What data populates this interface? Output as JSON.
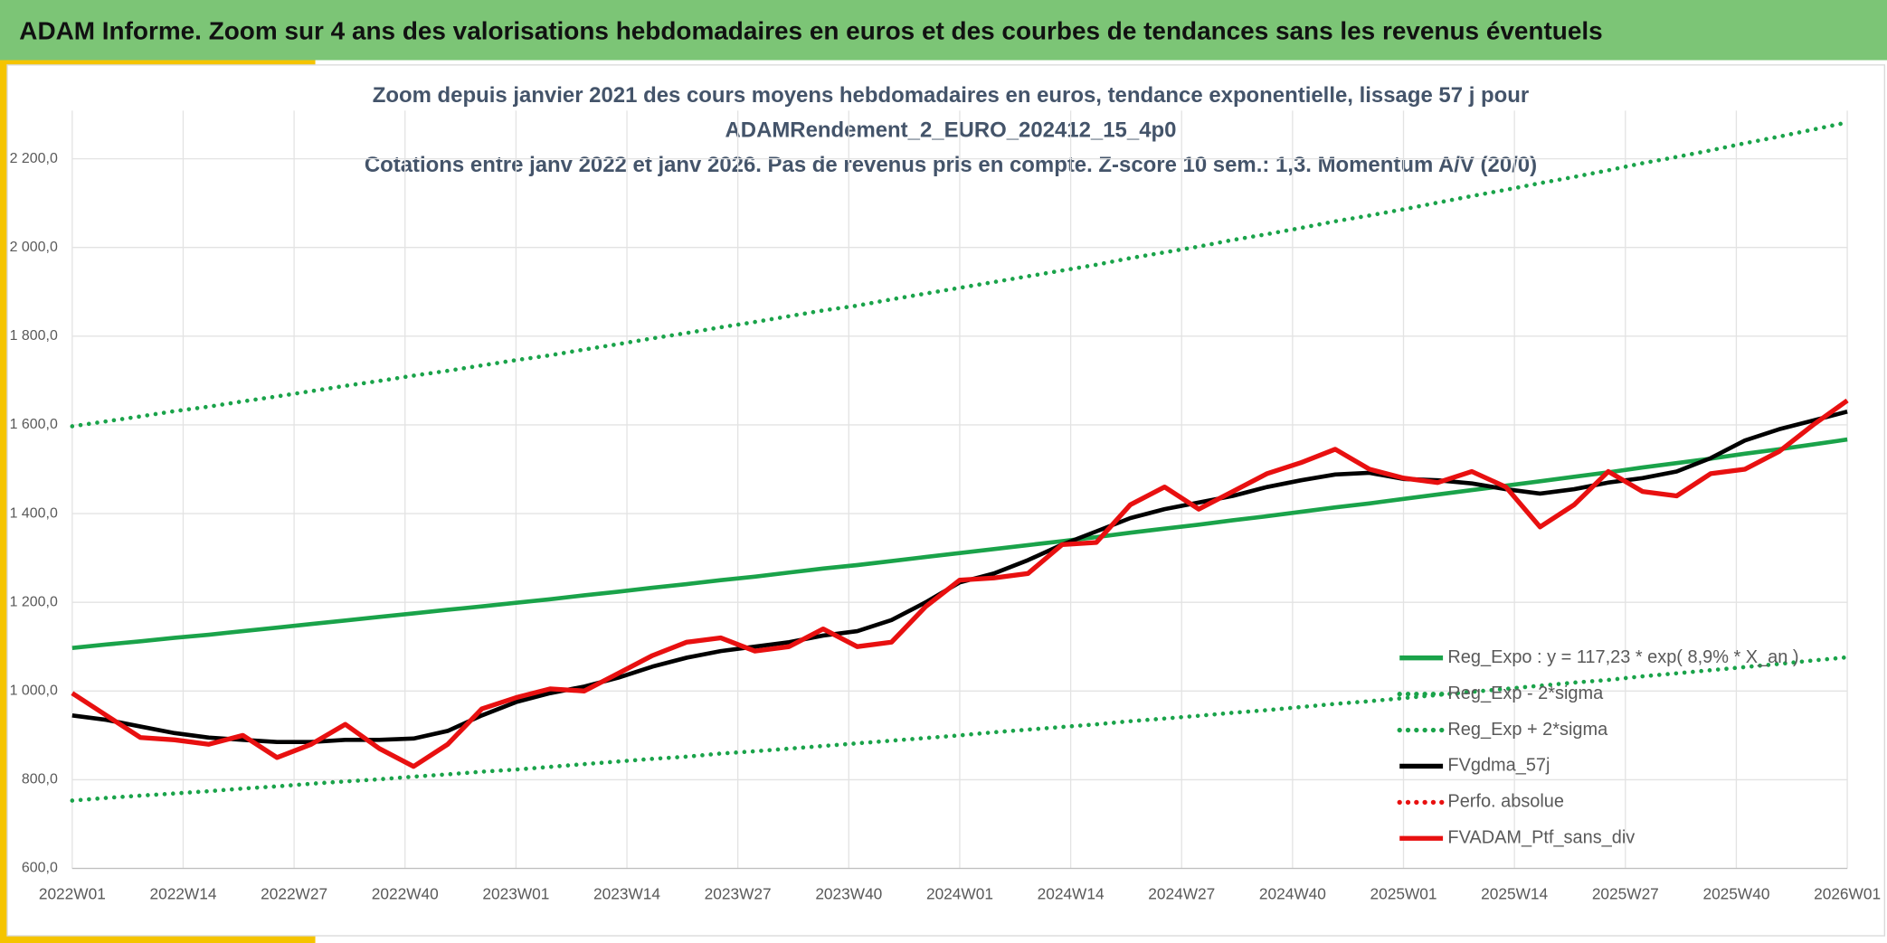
{
  "header": {
    "title": "ADAM Informe. Zoom sur 4 ans des valorisations hebdomadaires en euros et des courbes de tendances sans les revenus éventuels"
  },
  "chart_data": {
    "type": "line",
    "title": [
      "Zoom depuis janvier 2021 des cours moyens hebdomadaires en euros, tendance exponentielle, lissage 57 j pour",
      "ADAMRendement_2_EURO_202412_15_4p0",
      "Cotations entre janv 2022 et janv 2026. Pas de revenus pris en compte. Z-score 10 sem.: 1,3. Momentum A/V (20/0)"
    ],
    "x": [
      0,
      4,
      8,
      12,
      16,
      20,
      24,
      28,
      32,
      36,
      40,
      44,
      48,
      52,
      56,
      60,
      64,
      68,
      72,
      76,
      80,
      84,
      88,
      92,
      96,
      100,
      104,
      108,
      112,
      116,
      120,
      124,
      128,
      132,
      136,
      140,
      144,
      148,
      152,
      156,
      160,
      164,
      168,
      172,
      176,
      180,
      184,
      188,
      192,
      196,
      200,
      204,
      208
    ],
    "xlim": [
      0,
      208
    ],
    "xticks": [
      {
        "value": 0,
        "label": "2022W01"
      },
      {
        "value": 13,
        "label": "2022W14"
      },
      {
        "value": 26,
        "label": "2022W27"
      },
      {
        "value": 39,
        "label": "2022W40"
      },
      {
        "value": 52,
        "label": "2023W01"
      },
      {
        "value": 65,
        "label": "2023W14"
      },
      {
        "value": 78,
        "label": "2023W27"
      },
      {
        "value": 91,
        "label": "2023W40"
      },
      {
        "value": 104,
        "label": "2024W01"
      },
      {
        "value": 117,
        "label": "2024W14"
      },
      {
        "value": 130,
        "label": "2024W27"
      },
      {
        "value": 143,
        "label": "2024W40"
      },
      {
        "value": 156,
        "label": "2025W01"
      },
      {
        "value": 169,
        "label": "2025W14"
      },
      {
        "value": 182,
        "label": "2025W27"
      },
      {
        "value": 195,
        "label": "2025W40"
      },
      {
        "value": 208,
        "label": "2026W01"
      }
    ],
    "ylim": [
      600,
      2200
    ],
    "yticks": [
      {
        "value": 600,
        "label": "600,0"
      },
      {
        "value": 800,
        "label": "800,0"
      },
      {
        "value": 1000,
        "label": "1 000,0"
      },
      {
        "value": 1200,
        "label": "1 200,0"
      },
      {
        "value": 1400,
        "label": "1 400,0"
      },
      {
        "value": 1600,
        "label": "1 600,0"
      },
      {
        "value": 1800,
        "label": "1 800,0"
      },
      {
        "value": 2000,
        "label": "2 000,0"
      },
      {
        "value": 2200,
        "label": "2 200,0"
      }
    ],
    "grid": true,
    "series": [
      {
        "name": "Reg_Expo : y = 117,23 * exp( 8,9% * X_an )",
        "color": "#1aa34a",
        "dash": "solid",
        "values": [
          1097,
          1105,
          1112,
          1120,
          1127,
          1135,
          1143,
          1151,
          1159,
          1167,
          1175,
          1183,
          1191,
          1199,
          1207,
          1216,
          1224,
          1233,
          1241,
          1250,
          1258,
          1267,
          1276,
          1284,
          1293,
          1302,
          1311,
          1320,
          1329,
          1338,
          1347,
          1357,
          1366,
          1375,
          1385,
          1394,
          1404,
          1414,
          1423,
          1433,
          1443,
          1453,
          1463,
          1473,
          1483,
          1493,
          1504,
          1514,
          1524,
          1535,
          1545,
          1556,
          1567
        ]
      },
      {
        "name": "Reg_Exp - 2*sigma",
        "color": "#1aa34a",
        "dash": "dotted",
        "values": [
          753,
          759,
          764,
          769,
          774,
          780,
          785,
          791,
          796,
          801,
          807,
          812,
          818,
          823,
          829,
          835,
          841,
          847,
          852,
          859,
          864,
          870,
          876,
          882,
          888,
          894,
          900,
          907,
          913,
          919,
          925,
          932,
          938,
          944,
          951,
          957,
          964,
          971,
          977,
          984,
          991,
          998,
          1005,
          1012,
          1019,
          1025,
          1033,
          1040,
          1047,
          1054,
          1061,
          1069,
          1076
        ]
      },
      {
        "name": "Reg_Exp + 2*sigma",
        "color": "#1aa34a",
        "dash": "dotted",
        "values": [
          1597,
          1608,
          1619,
          1631,
          1641,
          1653,
          1664,
          1676,
          1688,
          1699,
          1711,
          1722,
          1734,
          1746,
          1757,
          1770,
          1782,
          1795,
          1807,
          1820,
          1832,
          1845,
          1858,
          1869,
          1883,
          1896,
          1909,
          1922,
          1935,
          1948,
          1961,
          1976,
          1989,
          2002,
          2017,
          2030,
          2044,
          2059,
          2072,
          2086,
          2101,
          2116,
          2130,
          2145,
          2159,
          2174,
          2190,
          2204,
          2219,
          2235,
          2250,
          2266,
          2282
        ]
      },
      {
        "name": "FVgdma_57j",
        "color": "#000000",
        "dash": "solid",
        "values": [
          945,
          935,
          920,
          905,
          895,
          890,
          885,
          885,
          890,
          890,
          893,
          910,
          945,
          975,
          995,
          1010,
          1030,
          1055,
          1075,
          1090,
          1100,
          1110,
          1125,
          1135,
          1160,
          1200,
          1245,
          1265,
          1295,
          1330,
          1360,
          1390,
          1410,
          1425,
          1440,
          1460,
          1475,
          1488,
          1492,
          1478,
          1475,
          1468,
          1455,
          1445,
          1455,
          1470,
          1480,
          1495,
          1525,
          1565,
          1590,
          1610,
          1630
        ]
      },
      {
        "name": "FVADAM_Ptf_sans_div",
        "color": "#e81010",
        "dash": "solid",
        "values": [
          995,
          945,
          895,
          890,
          880,
          900,
          850,
          880,
          925,
          870,
          830,
          880,
          960,
          985,
          1005,
          1000,
          1040,
          1080,
          1110,
          1120,
          1090,
          1100,
          1140,
          1100,
          1110,
          1190,
          1250,
          1255,
          1265,
          1330,
          1335,
          1420,
          1460,
          1410,
          1450,
          1490,
          1515,
          1545,
          1500,
          1480,
          1470,
          1495,
          1460,
          1370,
          1420,
          1495,
          1450,
          1440,
          1490,
          1500,
          1540,
          1600,
          1655
        ]
      }
    ],
    "legend_extra": [
      {
        "name": "Perfo. absolue",
        "color": "#e81010",
        "dash": "dotted",
        "after": 3
      }
    ]
  }
}
